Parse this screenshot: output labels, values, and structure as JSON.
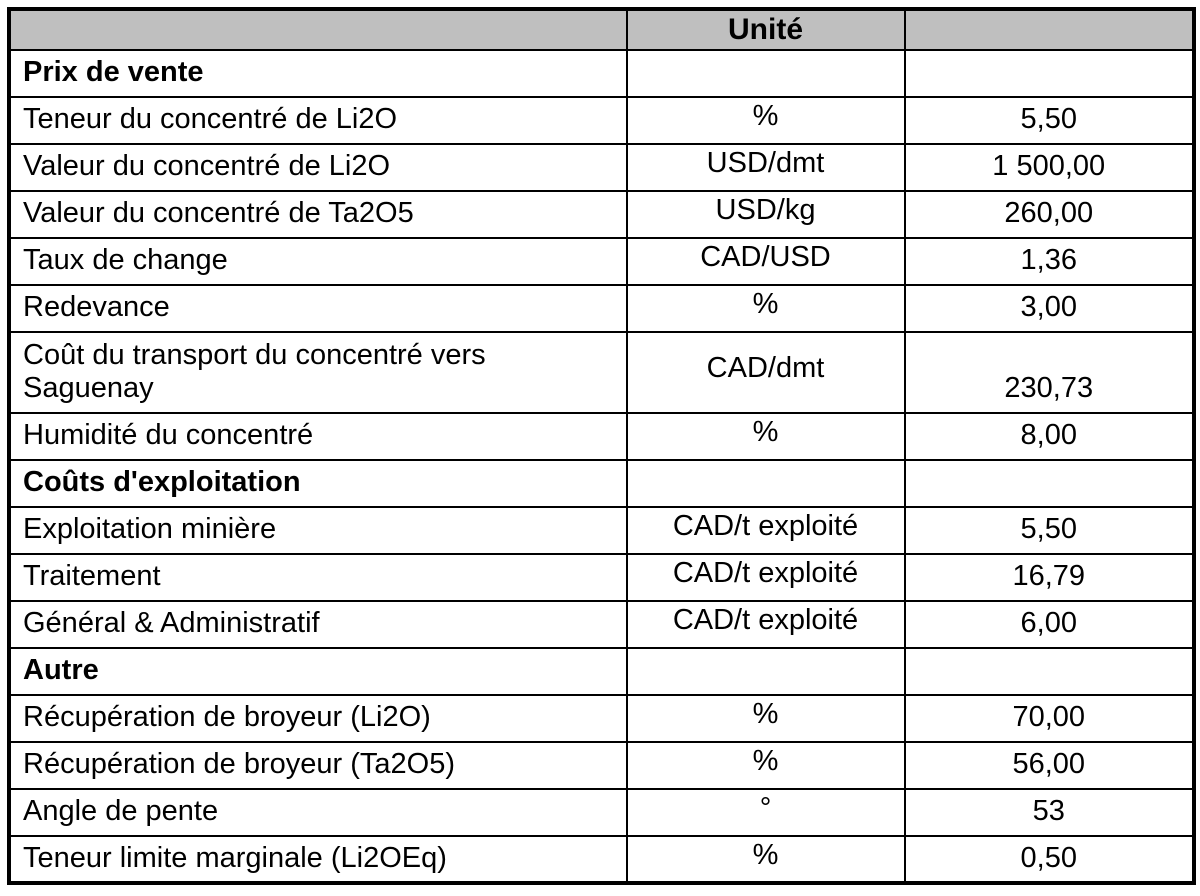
{
  "table": {
    "colors": {
      "header_bg": "#bfbfbf",
      "border": "#000000",
      "text": "#000000",
      "background": "#ffffff"
    },
    "header": {
      "parameter": "",
      "unit": "Unité",
      "value": ""
    },
    "rows": [
      {
        "type": "section",
        "label": "Prix de vente",
        "unit": "",
        "value": ""
      },
      {
        "type": "data",
        "label": "Teneur du concentré de Li2O",
        "unit": "%",
        "value": "5,50"
      },
      {
        "type": "data",
        "label": "Valeur du concentré de Li2O",
        "unit": "USD/dmt",
        "value": "1 500,00"
      },
      {
        "type": "data",
        "label": "Valeur du concentré de Ta2O5",
        "unit": "USD/kg",
        "value": "260,00"
      },
      {
        "type": "data",
        "label": "Taux de change",
        "unit": "CAD/USD",
        "value": "1,36"
      },
      {
        "type": "data",
        "label": "Redevance",
        "unit": "%",
        "value": "3,00"
      },
      {
        "type": "data",
        "tall": true,
        "label": "Coût du transport du concentré vers Saguenay",
        "unit": "CAD/dmt",
        "value": "230,73"
      },
      {
        "type": "data",
        "label": "Humidité du concentré",
        "unit": "%",
        "value": "8,00"
      },
      {
        "type": "section",
        "label": "Coûts d'exploitation",
        "unit": "",
        "value": ""
      },
      {
        "type": "data",
        "label": "Exploitation minière",
        "unit": "CAD/t exploité",
        "value": "5,50"
      },
      {
        "type": "data",
        "label": "Traitement",
        "unit": "CAD/t exploité",
        "value": "16,79"
      },
      {
        "type": "data",
        "label": "Général & Administratif",
        "unit": "CAD/t exploité",
        "value": "6,00"
      },
      {
        "type": "section",
        "label": "Autre",
        "unit": "",
        "value": ""
      },
      {
        "type": "data",
        "label": "Récupération de broyeur (Li2O)",
        "unit": "%",
        "value": "70,00"
      },
      {
        "type": "data",
        "label": "Récupération de broyeur (Ta2O5)",
        "unit": "%",
        "value": "56,00"
      },
      {
        "type": "data",
        "label": "Angle de pente",
        "unit": "°",
        "value": "53"
      },
      {
        "type": "data",
        "label": "Teneur limite marginale (Li2OEq)",
        "unit": "%",
        "value": "0,50"
      }
    ]
  }
}
